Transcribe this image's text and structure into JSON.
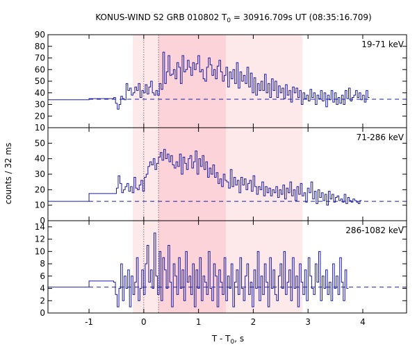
{
  "chart_data": {
    "type": "line",
    "title_prefix": "KONUS-WIND S2 GRB 010802 T",
    "title_sub": "0",
    "title_suffix": " = 30916.709s UT (08:35:16.709)",
    "xlabel_prefix": "T - T",
    "xlabel_sub": "0",
    "xlabel_suffix": ", s",
    "ylabel": "counts / 32 ms",
    "xlim": [
      -1.75,
      4.8
    ],
    "x_ticks": [
      "-1",
      "0",
      "1",
      "2",
      "3",
      "4"
    ],
    "x_tick_values": [
      -1,
      0,
      1,
      2,
      3,
      4
    ],
    "shaded_regions": [
      {
        "x0": -0.2,
        "x1": 2.9,
        "color": "#fde8ea"
      },
      {
        "x0": 0.27,
        "x1": 1.5,
        "color": "#fbd3d8"
      }
    ],
    "vertical_markers": [
      0.0,
      0.27
    ],
    "line_color": "#1a1aa0",
    "panels": [
      {
        "band": "19-71 keV",
        "ylim": [
          10,
          90
        ],
        "y_ticks": [
          "10",
          "20",
          "30",
          "40",
          "50",
          "60",
          "70",
          "80",
          "90"
        ],
        "background": 34.5,
        "pre_levels": [
          {
            "x0": -1.75,
            "x1": -1.0,
            "y": 34
          },
          {
            "x0": -1.0,
            "x1": -0.58,
            "y": 35
          }
        ],
        "series": [
          {
            "x0": -0.58,
            "dt": 0.032,
            "values": [
              35,
              36,
              31,
              26,
              30,
              37,
              35,
              34,
              48,
              42,
              44,
              38,
              40,
              45,
              42,
              48,
              36,
              42,
              40,
              47,
              39,
              45,
              50,
              40,
              38,
              42,
              38,
              48,
              43,
              75,
              48,
              58,
              72,
              55,
              56,
              60,
              52,
              66,
              62,
              48,
              72,
              58,
              60,
              68,
              62,
              55,
              66,
              60,
              65,
              72,
              58,
              60,
              52,
              50,
              62,
              70,
              64,
              55,
              60,
              52,
              63,
              68,
              58,
              50,
              55,
              62,
              45,
              58,
              52,
              60,
              48,
              66,
              44,
              58,
              50,
              55,
              48,
              62,
              45,
              57,
              40,
              53,
              38,
              48,
              42,
              50,
              42,
              56,
              40,
              48,
              36,
              52,
              42,
              50,
              36,
              46,
              40,
              44,
              35,
              47,
              38,
              42,
              32,
              45,
              40,
              44,
              36,
              42,
              30,
              40,
              35,
              38,
              33,
              43,
              36,
              40,
              30,
              38,
              35,
              42,
              33,
              40,
              28,
              38,
              34,
              42,
              32,
              40,
              30,
              36,
              31,
              38,
              30,
              42,
              35,
              44,
              33,
              36,
              38,
              42,
              36,
              40,
              34,
              38,
              32,
              42,
              36
            ]
          }
        ]
      },
      {
        "band": "71-286 keV",
        "ylim": [
          0,
          60
        ],
        "y_ticks": [
          "0",
          "10",
          "20",
          "30",
          "40",
          "50"
        ],
        "background": 12.5,
        "pre_levels": [
          {
            "x0": -1.75,
            "x1": -1.0,
            "y": 12.5
          },
          {
            "x0": -1.0,
            "x1": -0.5,
            "y": 17.5
          }
        ],
        "series": [
          {
            "x0": -0.5,
            "dt": 0.032,
            "values": [
              21,
              29,
              24,
              18,
              20,
              22,
              24,
              19,
              22,
              18,
              28,
              21,
              20,
              23,
              26,
              19,
              28,
              30,
              35,
              38,
              36,
              40,
              33,
              37,
              41,
              44,
              39,
              46,
              40,
              43,
              38,
              42,
              36,
              34,
              38,
              35,
              43,
              30,
              41,
              37,
              33,
              40,
              42,
              34,
              38,
              45,
              30,
              40,
              35,
              42,
              33,
              38,
              28,
              34,
              30,
              36,
              28,
              31,
              24,
              27,
              22,
              30,
              26,
              25,
              21,
              33,
              22,
              28,
              23,
              26,
              18,
              28,
              23,
              27,
              20,
              24,
              26,
              19,
              29,
              22,
              17,
              22,
              20,
              25,
              16,
              22,
              18,
              21,
              16,
              20,
              18,
              22,
              15,
              20,
              17,
              23,
              14,
              21,
              18,
              25,
              16,
              20,
              13,
              22,
              17,
              24,
              16,
              18,
              12,
              21,
              18,
              25,
              14,
              19,
              11,
              20,
              15,
              18,
              13,
              17,
              10,
              19,
              14,
              17,
              12,
              15,
              16,
              13,
              14,
              12,
              17,
              11,
              15,
              13,
              12,
              14,
              13,
              12,
              11,
              13
            ]
          }
        ]
      },
      {
        "band": "286-1082 keV",
        "ylim": [
          0,
          15
        ],
        "y_ticks": [
          "0",
          "2",
          "4",
          "6",
          "8",
          "10",
          "12",
          "14"
        ],
        "background": 4.2,
        "pre_levels": [
          {
            "x0": -1.75,
            "x1": -1.0,
            "y": 4.2
          },
          {
            "x0": -1.0,
            "x1": -0.55,
            "y": 5.2
          }
        ],
        "series": [
          {
            "x0": -0.55,
            "dt": 0.032,
            "values": [
              5,
              3,
              1,
              4,
              8,
              2,
              6,
              4,
              7,
              1,
              6,
              3,
              5,
              9,
              2,
              4,
              7,
              3,
              8,
              11,
              5,
              7,
              4,
              13,
              6,
              3,
              10,
              2,
              9,
              7,
              4,
              11,
              5,
              1,
              8,
              6,
              3,
              9,
              4,
              7,
              2,
              10,
              5,
              6,
              3,
              8,
              1,
              7,
              4,
              9,
              2,
              6,
              5,
              3,
              10,
              4,
              2,
              8,
              6,
              1,
              7,
              5,
              3,
              9,
              2,
              6,
              4,
              8,
              1,
              5,
              7,
              3,
              9,
              4,
              2,
              6,
              8,
              3,
              5,
              1,
              7,
              4,
              10,
              2,
              6,
              3,
              8,
              5,
              1,
              9,
              4,
              7,
              3,
              2,
              6,
              8,
              4,
              10,
              3,
              5,
              7,
              2,
              9,
              4,
              6,
              1,
              8,
              5,
              3,
              7,
              2,
              9,
              6,
              4,
              3,
              8,
              5,
              10,
              2,
              6,
              4,
              7,
              3,
              5,
              2,
              8,
              4,
              6,
              3,
              9,
              5,
              2,
              7,
              4
            ]
          }
        ]
      }
    ]
  }
}
